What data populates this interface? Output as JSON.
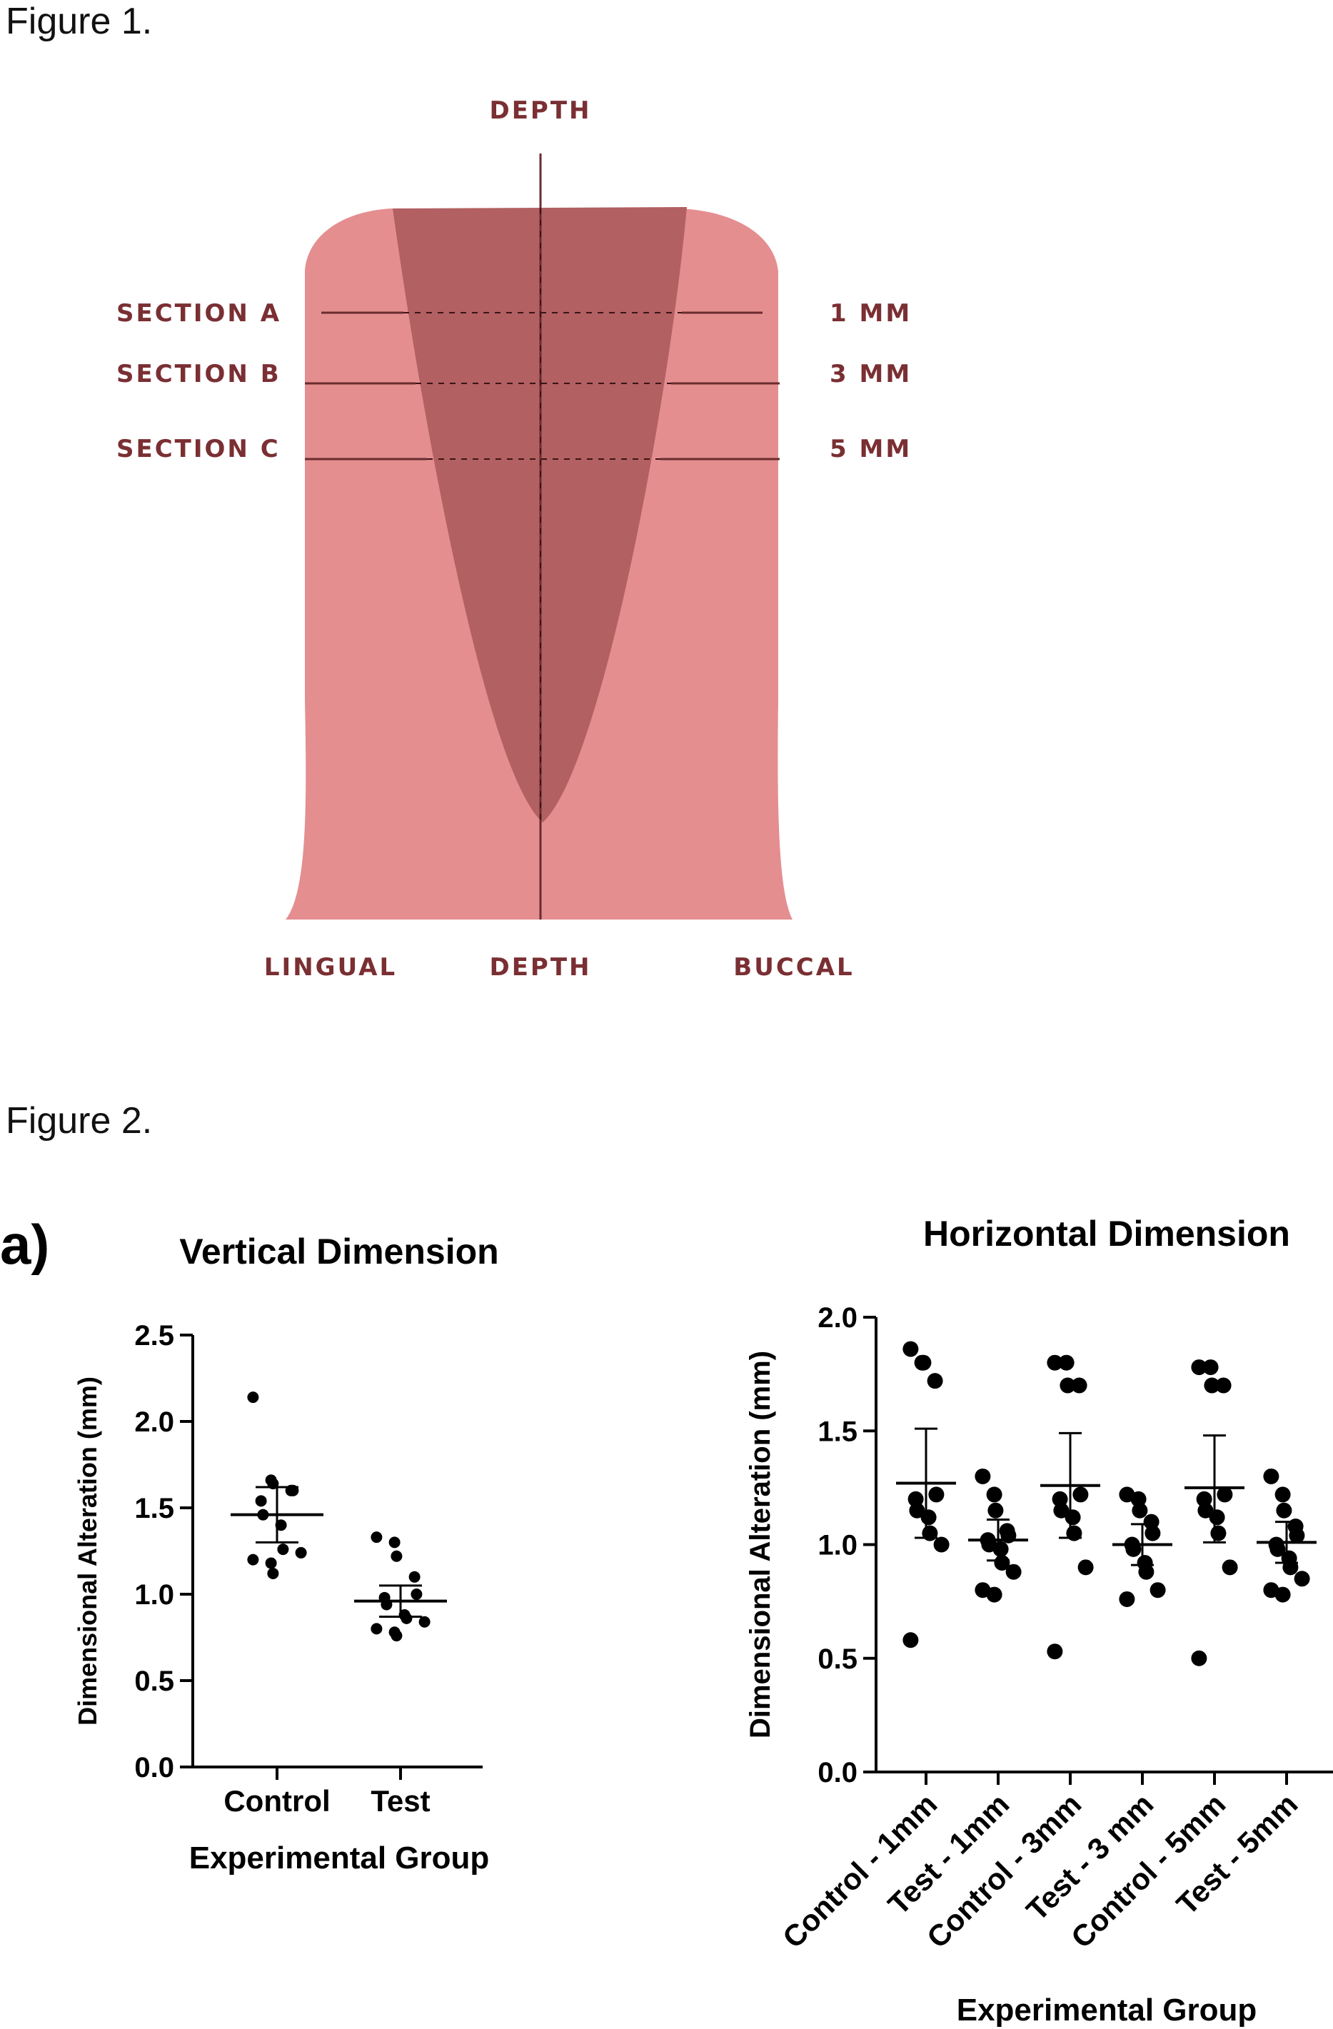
{
  "figure1": {
    "caption": "Figure 1.",
    "labels": {
      "depth_top": "DEPTH",
      "section_a": "SECTION A",
      "section_b": "SECTION B",
      "section_c": "SECTION C",
      "mm1": "1 MM",
      "mm3": "3 MM",
      "mm5": "5 MM",
      "lingual": "LINGUAL",
      "depth_bottom": "DEPTH",
      "buccal": "BUCCAL"
    },
    "colors": {
      "outer": "#e48e90",
      "inner": "#b26061",
      "line": "#6a2c2e",
      "text": "#7a2f33"
    }
  },
  "figure2": {
    "caption": "Figure 2.",
    "panel_label": "a)"
  },
  "chart_data": [
    {
      "type": "scatter",
      "title": "Vertical Dimension",
      "xlabel": "Experimental Group",
      "ylabel": "Dimensional Alteration (mm)",
      "categories": [
        "Control",
        "Test"
      ],
      "ylim": [
        0,
        2.5
      ],
      "yticks": [
        "0.0",
        "0.5",
        "1.0",
        "1.5",
        "2.0",
        "2.5"
      ],
      "points": [
        [
          2.14,
          1.66,
          1.64,
          1.6,
          1.6,
          1.54,
          1.46,
          1.4,
          1.26,
          1.24,
          1.2,
          1.18,
          1.12
        ],
        [
          1.33,
          1.3,
          1.22,
          1.1,
          1.0,
          0.98,
          0.94,
          0.88,
          0.86,
          0.84,
          0.8,
          0.78,
          0.76
        ]
      ],
      "mean": [
        1.46,
        0.96
      ],
      "err_low": [
        1.3,
        0.87
      ],
      "err_high": [
        1.62,
        1.05
      ],
      "grid": false
    },
    {
      "type": "scatter",
      "title": "Horizontal Dimension",
      "xlabel": "Experimental Group",
      "ylabel": "Dimensional Alteration (mm)",
      "categories": [
        "Control - 1mm",
        "Test - 1mm",
        "Control - 3mm",
        "Test - 3 mm",
        "Control - 5mm",
        "Test - 5mm"
      ],
      "ylim": [
        0,
        2.0
      ],
      "yticks": [
        "0.0",
        "0.5",
        "1.0",
        "1.5",
        "2.0"
      ],
      "points": [
        [
          1.86,
          1.8,
          1.8,
          1.72,
          1.22,
          1.2,
          1.15,
          1.12,
          1.05,
          1.0,
          0.58
        ],
        [
          1.3,
          1.22,
          1.15,
          1.06,
          1.04,
          1.02,
          1.0,
          0.98,
          0.92,
          0.88,
          0.8,
          0.78
        ],
        [
          1.8,
          1.8,
          1.7,
          1.7,
          1.22,
          1.2,
          1.15,
          1.12,
          1.05,
          0.9,
          0.53
        ],
        [
          1.22,
          1.2,
          1.15,
          1.1,
          1.05,
          1.0,
          0.98,
          0.92,
          0.88,
          0.8,
          0.76
        ],
        [
          1.78,
          1.78,
          1.7,
          1.7,
          1.22,
          1.2,
          1.15,
          1.12,
          1.05,
          0.9,
          0.5
        ],
        [
          1.3,
          1.22,
          1.15,
          1.08,
          1.04,
          1.0,
          0.98,
          0.94,
          0.9,
          0.85,
          0.8,
          0.78
        ]
      ],
      "mean": [
        1.27,
        1.02,
        1.26,
        1.0,
        1.25,
        1.01
      ],
      "err_low": [
        1.03,
        0.93,
        1.03,
        0.91,
        1.01,
        0.92
      ],
      "err_high": [
        1.51,
        1.11,
        1.49,
        1.09,
        1.48,
        1.1
      ],
      "grid": false
    }
  ]
}
